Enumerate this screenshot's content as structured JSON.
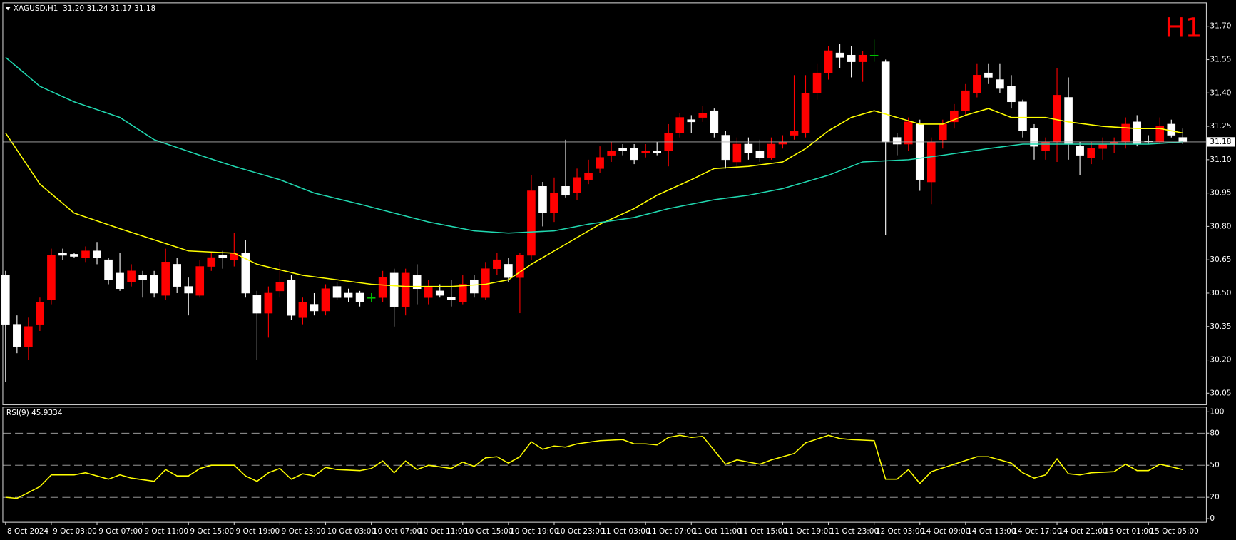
{
  "chart_data": [
    {
      "type": "candlestick",
      "title": "XAGUSD,H1  31.20 31.24 31.17 31.18",
      "timeframe": "H1",
      "categories": [
        "8 Oct 2024",
        null,
        null,
        null,
        "9 Oct 03:00",
        null,
        null,
        null,
        "9 Oct 07:00",
        null,
        null,
        null,
        "9 Oct 11:00",
        null,
        null,
        null,
        "9 Oct 15:00",
        null,
        null,
        null,
        "9 Oct 19:00",
        null,
        null,
        null,
        "9 Oct 23:00",
        null,
        null,
        null,
        "10 Oct 03:00",
        null,
        null,
        null,
        "10 Oct 07:00",
        null,
        null,
        null,
        "10 Oct 11:00",
        null,
        null,
        null,
        "10 Oct 15:00",
        null,
        null,
        null,
        "10 Oct 19:00",
        null,
        null,
        null,
        "10 Oct 23:00",
        null,
        null,
        null,
        "11 Oct 03:00",
        null,
        null,
        null,
        "11 Oct 07:00",
        null,
        null,
        null,
        "11 Oct 11:00",
        null,
        null,
        null,
        "11 Oct 15:00",
        null,
        null,
        null,
        "11 Oct 19:00",
        null,
        null,
        null,
        "11 Oct 23:00",
        null,
        null,
        null,
        "12 Oct 03:00",
        null,
        null,
        null,
        "14 Oct 09:00",
        null,
        null,
        null,
        "14 Oct 13:00",
        null,
        null,
        null,
        "14 Oct 17:00",
        null,
        null,
        null,
        "14 Oct 21:00",
        null,
        null,
        null,
        "15 Oct 01:00",
        null,
        null,
        null,
        "15 Oct 05:00",
        null,
        null,
        null
      ],
      "open": [
        30.58,
        30.36,
        30.26,
        30.36,
        30.47,
        30.68,
        30.675,
        30.66,
        30.69,
        30.65,
        30.59,
        30.55,
        30.58,
        30.58,
        30.49,
        30.63,
        30.53,
        30.49,
        30.62,
        30.67,
        30.65,
        30.68,
        30.49,
        30.41,
        30.51,
        30.56,
        30.39,
        30.45,
        30.42,
        30.53,
        30.5,
        30.5,
        30.48,
        30.48,
        30.59,
        30.44,
        30.58,
        30.48,
        30.51,
        30.48,
        30.46,
        30.56,
        30.48,
        30.61,
        30.63,
        30.57,
        30.67,
        30.98,
        30.86,
        30.98,
        30.95,
        31.01,
        31.06,
        31.12,
        31.15,
        31.15,
        31.13,
        31.14,
        31.14,
        31.22,
        31.28,
        31.29,
        31.32,
        31.21,
        31.09,
        31.17,
        31.14,
        31.11,
        31.17,
        31.21,
        31.22,
        31.4,
        31.49,
        31.58,
        31.57,
        31.54,
        31.57,
        31.54,
        31.2,
        31.17,
        31.26,
        31.0,
        31.19,
        31.27,
        31.32,
        31.4,
        31.49,
        31.46,
        31.43,
        31.36,
        31.24,
        31.14,
        31.18,
        31.38,
        31.16,
        31.11,
        31.15,
        31.17,
        31.18,
        31.27,
        31.185,
        31.18,
        31.26,
        31.2
      ],
      "high": [
        30.6,
        30.4,
        30.39,
        30.48,
        30.7,
        30.7,
        30.68,
        30.71,
        30.73,
        30.66,
        30.68,
        30.63,
        30.6,
        30.6,
        30.7,
        30.66,
        30.57,
        30.65,
        30.68,
        30.69,
        30.77,
        30.74,
        30.51,
        30.53,
        30.64,
        30.58,
        30.48,
        30.5,
        30.54,
        30.55,
        30.52,
        30.51,
        30.5,
        30.6,
        30.61,
        30.61,
        30.63,
        30.56,
        30.54,
        30.56,
        30.58,
        30.58,
        30.64,
        30.68,
        30.66,
        30.68,
        31.03,
        31.0,
        31.02,
        31.19,
        31.06,
        31.1,
        31.16,
        31.18,
        31.17,
        31.17,
        31.17,
        31.18,
        31.26,
        31.31,
        31.3,
        31.34,
        31.33,
        31.23,
        31.2,
        31.2,
        31.19,
        31.2,
        31.21,
        31.48,
        31.48,
        31.53,
        31.61,
        31.62,
        31.61,
        31.59,
        31.64,
        31.55,
        31.22,
        31.29,
        31.28,
        31.2,
        31.28,
        31.35,
        31.44,
        31.53,
        31.53,
        31.53,
        31.48,
        31.37,
        31.26,
        31.2,
        31.51,
        31.47,
        31.18,
        31.18,
        31.2,
        31.2,
        31.29,
        31.3,
        31.21,
        31.29,
        31.28,
        31.24
      ],
      "low": [
        30.1,
        30.23,
        30.2,
        30.33,
        30.45,
        30.65,
        30.66,
        30.64,
        30.63,
        30.54,
        30.51,
        30.53,
        30.48,
        30.48,
        30.47,
        30.5,
        30.4,
        30.48,
        30.6,
        30.61,
        30.62,
        30.48,
        30.2,
        30.3,
        30.48,
        30.38,
        30.36,
        30.4,
        30.4,
        30.47,
        30.46,
        30.44,
        30.46,
        30.46,
        30.35,
        30.4,
        30.45,
        30.45,
        30.48,
        30.44,
        30.45,
        30.48,
        30.47,
        30.58,
        30.55,
        30.41,
        30.65,
        30.8,
        30.82,
        30.93,
        30.92,
        30.99,
        31.04,
        31.09,
        31.12,
        31.08,
        31.11,
        31.12,
        31.07,
        31.2,
        31.22,
        31.27,
        31.2,
        31.06,
        31.06,
        31.1,
        31.09,
        31.1,
        31.15,
        31.19,
        31.2,
        31.37,
        31.46,
        31.51,
        31.47,
        31.45,
        31.54,
        30.76,
        31.12,
        31.14,
        30.96,
        30.9,
        31.15,
        31.24,
        31.3,
        31.38,
        31.44,
        31.4,
        31.33,
        31.2,
        31.1,
        31.1,
        31.09,
        31.1,
        31.03,
        31.08,
        31.1,
        31.13,
        31.15,
        31.16,
        31.17,
        31.17,
        31.2,
        31.17
      ],
      "close": [
        30.36,
        30.26,
        30.35,
        30.46,
        30.67,
        30.67,
        30.665,
        30.69,
        30.66,
        30.56,
        30.52,
        30.6,
        30.56,
        30.5,
        30.64,
        30.53,
        30.5,
        30.62,
        30.66,
        30.66,
        30.68,
        30.5,
        30.41,
        30.5,
        30.55,
        30.4,
        30.46,
        30.42,
        30.52,
        30.48,
        30.48,
        30.46,
        30.48,
        30.57,
        30.44,
        30.59,
        30.52,
        30.53,
        30.49,
        30.47,
        30.54,
        30.5,
        30.61,
        30.65,
        30.57,
        30.67,
        30.96,
        30.86,
        30.95,
        30.94,
        31.02,
        31.04,
        31.11,
        31.14,
        31.14,
        31.1,
        31.14,
        31.13,
        31.22,
        31.29,
        31.27,
        31.31,
        31.22,
        31.1,
        31.17,
        31.13,
        31.11,
        31.17,
        31.18,
        31.23,
        31.4,
        31.49,
        31.59,
        31.56,
        31.54,
        31.57,
        31.57,
        31.18,
        31.17,
        31.27,
        31.01,
        31.18,
        31.26,
        31.32,
        31.41,
        31.48,
        31.47,
        31.42,
        31.36,
        31.23,
        31.16,
        31.18,
        31.39,
        31.17,
        31.12,
        31.15,
        31.17,
        31.18,
        31.26,
        31.17,
        31.18,
        31.25,
        31.21,
        31.18
      ],
      "up_color": "#ff0000",
      "down_color": "#ffffff",
      "doji_color": "#00c000",
      "moving_averages": [
        {
          "color": "#ffff00",
          "x": [
            0,
            3,
            6,
            10,
            13,
            16,
            20,
            22,
            26,
            29,
            32,
            35,
            39,
            42,
            44,
            46,
            49,
            52,
            55,
            57,
            60,
            62,
            65,
            68,
            70,
            72,
            74,
            76,
            78,
            80,
            82,
            84,
            86,
            88,
            91,
            93,
            96,
            99,
            101,
            103
          ],
          "values": [
            31.22,
            30.99,
            30.86,
            30.79,
            30.74,
            30.69,
            30.68,
            30.63,
            30.58,
            30.56,
            30.54,
            30.53,
            30.53,
            30.54,
            30.56,
            30.63,
            30.72,
            30.81,
            30.88,
            30.94,
            31.01,
            31.06,
            31.07,
            31.09,
            31.15,
            31.23,
            31.29,
            31.32,
            31.29,
            31.26,
            31.26,
            31.3,
            31.33,
            31.29,
            31.29,
            31.27,
            31.25,
            31.24,
            31.24,
            31.22
          ]
        },
        {
          "color": "#20d8b0",
          "x": [
            0,
            3,
            6,
            10,
            13,
            17,
            20,
            24,
            27,
            31,
            34,
            37,
            41,
            44,
            48,
            51,
            55,
            58,
            62,
            65,
            68,
            72,
            75,
            79,
            82,
            86,
            89,
            93,
            96,
            100,
            103
          ],
          "values": [
            31.56,
            31.43,
            31.36,
            31.29,
            31.19,
            31.12,
            31.07,
            31.01,
            30.95,
            30.9,
            30.86,
            30.82,
            30.78,
            30.77,
            30.78,
            30.81,
            30.84,
            30.88,
            30.92,
            30.94,
            30.97,
            31.03,
            31.09,
            31.1,
            31.12,
            31.15,
            31.17,
            31.17,
            31.17,
            31.17,
            31.18
          ]
        }
      ],
      "current_price": 31.18,
      "ylim": [
        30.0,
        31.8
      ],
      "yticks": [
        {
          "value": 31.7,
          "label": "31.70"
        },
        31.55,
        {
          "value": 31.4,
          "label": "31.40"
        },
        31.25,
        {
          "value": 31.1,
          "label": "31.10"
        },
        30.95,
        {
          "value": 30.8,
          "label": "30.80"
        },
        30.65,
        {
          "value": 30.5,
          "label": "30.50"
        },
        30.35,
        {
          "value": 30.2,
          "label": "30.20"
        },
        30.05
      ]
    },
    {
      "type": "line",
      "title": "RSI(9) 45.9334",
      "color": "#ffff00",
      "x": [
        0,
        1,
        3,
        4,
        6,
        7,
        9,
        10,
        11,
        13,
        14,
        15,
        16,
        17,
        18,
        20,
        21,
        22,
        23,
        24,
        25,
        26,
        27,
        28,
        29,
        31,
        32,
        33,
        34,
        35,
        36,
        37,
        39,
        40,
        41,
        42,
        43,
        44,
        45,
        46,
        47,
        48,
        49,
        50,
        52,
        54,
        55,
        56,
        57,
        58,
        59,
        60,
        61,
        63,
        64,
        66,
        67,
        69,
        70,
        72,
        73,
        74,
        76,
        77,
        78,
        79,
        80,
        81,
        83,
        85,
        86,
        88,
        89,
        90,
        91,
        92,
        93,
        94,
        95,
        97,
        98,
        99,
        100,
        101,
        103
      ],
      "values": [
        20,
        19,
        30,
        41,
        41,
        43,
        37,
        41,
        38,
        35,
        46,
        40,
        40,
        47,
        50,
        50,
        40,
        35,
        43,
        47,
        37,
        42,
        40,
        48,
        46,
        45,
        47,
        54,
        43,
        54,
        46,
        50,
        47,
        53,
        49,
        57,
        58,
        52,
        58,
        72,
        65,
        68,
        67,
        70,
        73,
        74,
        70,
        70,
        69,
        76,
        78,
        76,
        77,
        51,
        55,
        51,
        55,
        61,
        71,
        78,
        75,
        74,
        73,
        37,
        37,
        46,
        33,
        44,
        51,
        58,
        58,
        52,
        43,
        38,
        41,
        56,
        42,
        41,
        43,
        44,
        51,
        45,
        45,
        51,
        46
      ],
      "ylim": [
        -3,
        104
      ],
      "yticks": [
        100,
        80,
        50,
        20,
        0
      ],
      "levels": [
        80,
        50,
        20
      ]
    }
  ]
}
